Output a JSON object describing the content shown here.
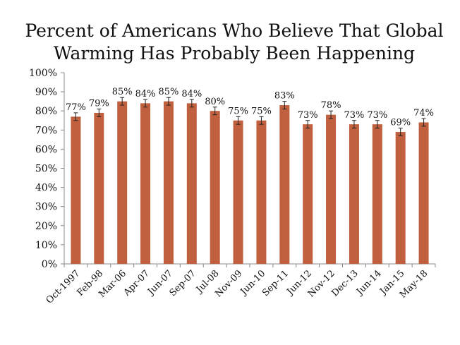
{
  "chart_data": {
    "type": "bar",
    "title": [
      "Percent of Americans Who Believe That Global",
      "Warming Has Probably Been Happening"
    ],
    "xlabel": "",
    "ylabel": "",
    "ylim": [
      0,
      100
    ],
    "yticks": [
      "0%",
      "10%",
      "20%",
      "30%",
      "40%",
      "50%",
      "60%",
      "70%",
      "80%",
      "90%",
      "100%"
    ],
    "categories": [
      "Oct-1997",
      "Feb-98",
      "Mar-06",
      "Apr-07",
      "Jun-07",
      "Sep-07",
      "Jul-08",
      "Nov-09",
      "Jun-10",
      "Sep-11",
      "Jun-12",
      "Nov-12",
      "Dec-13",
      "Jun-14",
      "Jan-15",
      "May-18"
    ],
    "values": [
      77,
      79,
      85,
      84,
      85,
      84,
      80,
      75,
      75,
      83,
      73,
      78,
      73,
      73,
      69,
      74
    ],
    "data_labels": [
      "77%",
      "79%",
      "85%",
      "84%",
      "85%",
      "84%",
      "80%",
      "75%",
      "75%",
      "83%",
      "73%",
      "78%",
      "73%",
      "73%",
      "69%",
      "74%"
    ],
    "error_margin": 2,
    "grid": false,
    "legend": "none",
    "bar_color": "#C0603F"
  }
}
